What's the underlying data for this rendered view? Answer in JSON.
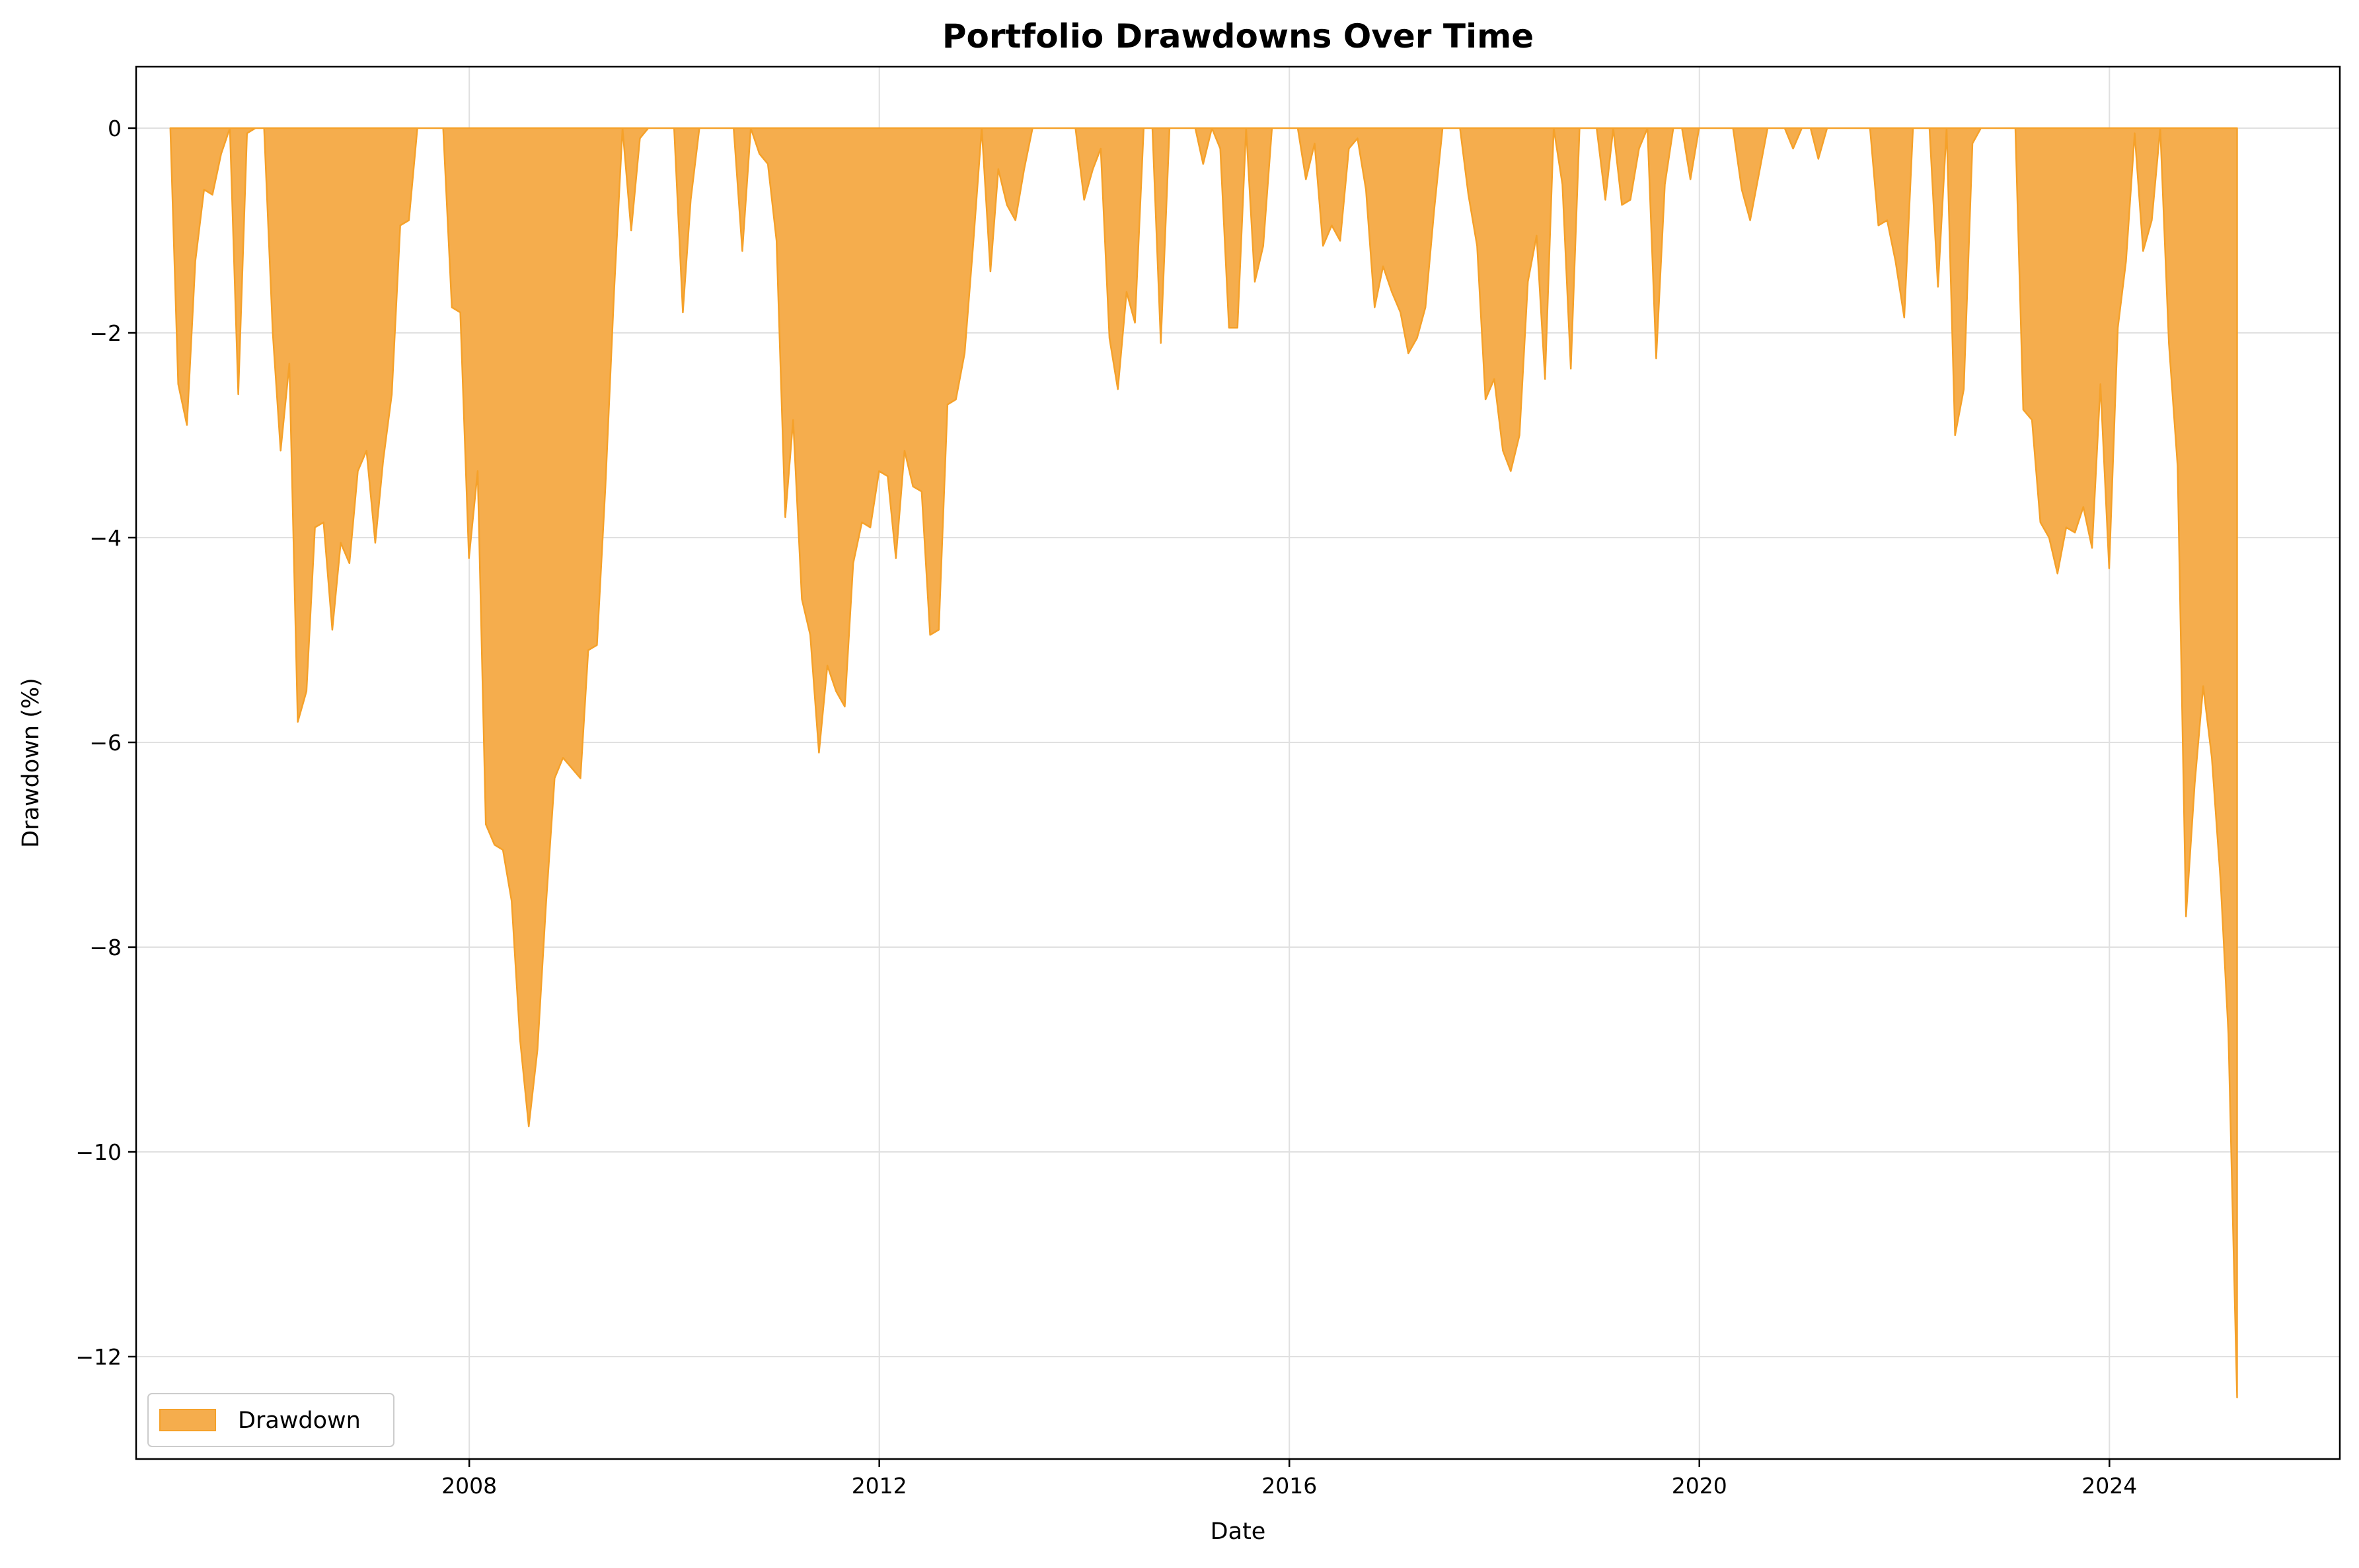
{
  "chart_data": {
    "type": "area",
    "title": "Portfolio Drawdowns Over Time",
    "xlabel": "Date",
    "ylabel": "Drawdown (%)",
    "xlim": [
      "2004-10-01",
      "2026-04-01"
    ],
    "ylim": [
      -13.0,
      0.6
    ],
    "x_ticks": [
      "2008",
      "2012",
      "2016",
      "2020",
      "2024"
    ],
    "y_ticks": [
      0,
      -2,
      -4,
      -6,
      -8,
      -10,
      -12
    ],
    "y_tick_labels": [
      "0",
      "−2",
      "−4",
      "−6",
      "−8",
      "−10",
      "−12"
    ],
    "grid": true,
    "legend": {
      "position": "lower-left",
      "entries": [
        "Drawdown"
      ]
    },
    "colors": {
      "fill": "#f5ad4d",
      "edge": "#f5a12a",
      "grid": "#e0e0e0"
    },
    "series": [
      {
        "name": "Drawdown",
        "points": [
          [
            "2005-01-31",
            0
          ],
          [
            "2005-02-28",
            -2.5
          ],
          [
            "2005-03-31",
            -2.9
          ],
          [
            "2005-04-30",
            -1.3
          ],
          [
            "2005-05-31",
            -0.6
          ],
          [
            "2005-06-30",
            -0.65
          ],
          [
            "2005-07-31",
            -0.25
          ],
          [
            "2005-08-31",
            0
          ],
          [
            "2005-09-30",
            -2.6
          ],
          [
            "2005-10-31",
            -0.05
          ],
          [
            "2005-11-30",
            0
          ],
          [
            "2005-12-31",
            0
          ],
          [
            "2006-01-31",
            -2.0
          ],
          [
            "2006-02-28",
            -3.15
          ],
          [
            "2006-03-31",
            -2.3
          ],
          [
            "2006-04-30",
            -5.8
          ],
          [
            "2006-05-31",
            -5.5
          ],
          [
            "2006-06-30",
            -3.9
          ],
          [
            "2006-07-31",
            -3.85
          ],
          [
            "2006-08-31",
            -4.9
          ],
          [
            "2006-09-30",
            -4.05
          ],
          [
            "2006-10-31",
            -4.25
          ],
          [
            "2006-11-30",
            -3.35
          ],
          [
            "2006-12-31",
            -3.15
          ],
          [
            "2007-01-31",
            -4.05
          ],
          [
            "2007-02-28",
            -3.25
          ],
          [
            "2007-03-31",
            -2.6
          ],
          [
            "2007-04-30",
            -0.95
          ],
          [
            "2007-05-31",
            -0.9
          ],
          [
            "2007-06-30",
            0
          ],
          [
            "2007-07-31",
            0
          ],
          [
            "2007-08-31",
            0
          ],
          [
            "2007-09-30",
            0
          ],
          [
            "2007-10-31",
            -1.75
          ],
          [
            "2007-11-30",
            -1.8
          ],
          [
            "2007-12-31",
            -4.2
          ],
          [
            "2008-01-31",
            -3.35
          ],
          [
            "2008-02-29",
            -6.8
          ],
          [
            "2008-03-31",
            -7.0
          ],
          [
            "2008-04-30",
            -7.05
          ],
          [
            "2008-05-31",
            -7.55
          ],
          [
            "2008-06-30",
            -8.9
          ],
          [
            "2008-07-31",
            -9.75
          ],
          [
            "2008-08-31",
            -9.0
          ],
          [
            "2008-09-30",
            -7.6
          ],
          [
            "2008-10-31",
            -6.35
          ],
          [
            "2008-11-30",
            -6.15
          ],
          [
            "2008-12-31",
            -6.25
          ],
          [
            "2009-01-31",
            -6.35
          ],
          [
            "2009-02-28",
            -5.1
          ],
          [
            "2009-03-31",
            -5.05
          ],
          [
            "2009-04-30",
            -3.5
          ],
          [
            "2009-05-31",
            -1.6
          ],
          [
            "2009-06-30",
            0
          ],
          [
            "2009-07-31",
            -1.0
          ],
          [
            "2009-08-31",
            -0.1
          ],
          [
            "2009-09-30",
            0
          ],
          [
            "2009-10-31",
            0
          ],
          [
            "2009-11-30",
            0
          ],
          [
            "2009-12-31",
            0
          ],
          [
            "2010-01-31",
            -1.8
          ],
          [
            "2010-02-28",
            -0.7
          ],
          [
            "2010-03-31",
            0
          ],
          [
            "2010-04-30",
            0
          ],
          [
            "2010-05-31",
            0
          ],
          [
            "2010-06-30",
            0
          ],
          [
            "2010-07-31",
            0
          ],
          [
            "2010-08-31",
            -1.2
          ],
          [
            "2010-09-30",
            0
          ],
          [
            "2010-10-31",
            -0.25
          ],
          [
            "2010-11-30",
            -0.35
          ],
          [
            "2010-12-31",
            -1.1
          ],
          [
            "2011-01-31",
            -3.8
          ],
          [
            "2011-02-28",
            -2.85
          ],
          [
            "2011-03-31",
            -4.6
          ],
          [
            "2011-04-30",
            -4.95
          ],
          [
            "2011-05-31",
            -6.1
          ],
          [
            "2011-06-30",
            -5.25
          ],
          [
            "2011-07-31",
            -5.5
          ],
          [
            "2011-08-31",
            -5.65
          ],
          [
            "2011-09-30",
            -4.25
          ],
          [
            "2011-10-31",
            -3.85
          ],
          [
            "2011-11-30",
            -3.9
          ],
          [
            "2011-12-31",
            -3.35
          ],
          [
            "2012-01-31",
            -3.4
          ],
          [
            "2012-02-29",
            -4.2
          ],
          [
            "2012-03-31",
            -3.15
          ],
          [
            "2012-04-30",
            -3.5
          ],
          [
            "2012-05-31",
            -3.55
          ],
          [
            "2012-06-30",
            -4.95
          ],
          [
            "2012-07-31",
            -4.9
          ],
          [
            "2012-08-31",
            -2.7
          ],
          [
            "2012-09-30",
            -2.65
          ],
          [
            "2012-10-31",
            -2.2
          ],
          [
            "2012-11-30",
            -1.15
          ],
          [
            "2012-12-31",
            0
          ],
          [
            "2013-01-31",
            -1.4
          ],
          [
            "2013-02-28",
            -0.4
          ],
          [
            "2013-03-31",
            -0.75
          ],
          [
            "2013-04-30",
            -0.9
          ],
          [
            "2013-05-31",
            -0.4
          ],
          [
            "2013-06-30",
            0
          ],
          [
            "2013-07-31",
            0
          ],
          [
            "2013-08-31",
            0
          ],
          [
            "2013-09-30",
            0
          ],
          [
            "2013-10-31",
            0
          ],
          [
            "2013-11-30",
            0
          ],
          [
            "2013-12-31",
            -0.7
          ],
          [
            "2014-01-31",
            -0.4
          ],
          [
            "2014-02-28",
            -0.2
          ],
          [
            "2014-03-31",
            -2.05
          ],
          [
            "2014-04-30",
            -2.55
          ],
          [
            "2014-05-31",
            -1.6
          ],
          [
            "2014-06-30",
            -1.9
          ],
          [
            "2014-07-31",
            0
          ],
          [
            "2014-08-31",
            0
          ],
          [
            "2014-09-30",
            -2.1
          ],
          [
            "2014-10-31",
            0
          ],
          [
            "2014-11-30",
            0
          ],
          [
            "2014-12-31",
            0
          ],
          [
            "2015-01-31",
            0
          ],
          [
            "2015-02-28",
            -0.35
          ],
          [
            "2015-03-31",
            0
          ],
          [
            "2015-04-30",
            -0.2
          ],
          [
            "2015-05-31",
            -1.95
          ],
          [
            "2015-06-30",
            -1.95
          ],
          [
            "2015-07-31",
            0
          ],
          [
            "2015-08-31",
            -1.5
          ],
          [
            "2015-09-30",
            -1.15
          ],
          [
            "2015-10-31",
            0
          ],
          [
            "2015-11-30",
            0
          ],
          [
            "2015-12-31",
            0
          ],
          [
            "2016-01-31",
            0
          ],
          [
            "2016-02-29",
            -0.5
          ],
          [
            "2016-03-31",
            -0.15
          ],
          [
            "2016-04-30",
            -1.15
          ],
          [
            "2016-05-31",
            -0.95
          ],
          [
            "2016-06-30",
            -1.1
          ],
          [
            "2016-07-31",
            -0.2
          ],
          [
            "2016-08-31",
            -0.1
          ],
          [
            "2016-09-30",
            -0.6
          ],
          [
            "2016-10-31",
            -1.75
          ],
          [
            "2016-11-30",
            -1.35
          ],
          [
            "2016-12-31",
            -1.6
          ],
          [
            "2017-01-31",
            -1.8
          ],
          [
            "2017-02-28",
            -2.2
          ],
          [
            "2017-03-31",
            -2.05
          ],
          [
            "2017-04-30",
            -1.75
          ],
          [
            "2017-05-31",
            -0.8
          ],
          [
            "2017-06-30",
            0
          ],
          [
            "2017-07-31",
            0
          ],
          [
            "2017-08-31",
            0
          ],
          [
            "2017-09-30",
            -0.65
          ],
          [
            "2017-10-31",
            -1.15
          ],
          [
            "2017-11-30",
            -2.65
          ],
          [
            "2017-12-31",
            -2.45
          ],
          [
            "2018-01-31",
            -3.15
          ],
          [
            "2018-02-28",
            -3.35
          ],
          [
            "2018-03-31",
            -3.0
          ],
          [
            "2018-04-30",
            -1.5
          ],
          [
            "2018-05-31",
            -1.05
          ],
          [
            "2018-06-30",
            -2.45
          ],
          [
            "2018-07-31",
            0
          ],
          [
            "2018-08-31",
            -0.55
          ],
          [
            "2018-09-30",
            -2.35
          ],
          [
            "2018-10-31",
            0
          ],
          [
            "2018-11-30",
            0
          ],
          [
            "2018-12-31",
            0
          ],
          [
            "2019-01-31",
            -0.7
          ],
          [
            "2019-02-28",
            0
          ],
          [
            "2019-03-31",
            -0.75
          ],
          [
            "2019-04-30",
            -0.7
          ],
          [
            "2019-05-31",
            -0.2
          ],
          [
            "2019-06-30",
            0
          ],
          [
            "2019-07-31",
            -2.25
          ],
          [
            "2019-08-31",
            -0.55
          ],
          [
            "2019-09-30",
            0
          ],
          [
            "2019-10-31",
            0
          ],
          [
            "2019-11-30",
            -0.5
          ],
          [
            "2019-12-31",
            0
          ],
          [
            "2020-01-31",
            0
          ],
          [
            "2020-02-29",
            0
          ],
          [
            "2020-03-31",
            0
          ],
          [
            "2020-04-30",
            0
          ],
          [
            "2020-05-31",
            -0.6
          ],
          [
            "2020-06-30",
            -0.9
          ],
          [
            "2020-07-31",
            -0.45
          ],
          [
            "2020-08-31",
            0
          ],
          [
            "2020-09-30",
            0
          ],
          [
            "2020-10-31",
            0
          ],
          [
            "2020-11-30",
            -0.2
          ],
          [
            "2020-12-31",
            0
          ],
          [
            "2021-01-31",
            0
          ],
          [
            "2021-02-28",
            -0.3
          ],
          [
            "2021-03-31",
            0
          ],
          [
            "2021-04-30",
            0
          ],
          [
            "2021-05-31",
            0
          ],
          [
            "2021-06-30",
            0
          ],
          [
            "2021-07-31",
            0
          ],
          [
            "2021-08-31",
            0
          ],
          [
            "2021-09-30",
            -0.95
          ],
          [
            "2021-10-31",
            -0.9
          ],
          [
            "2021-11-30",
            -1.3
          ],
          [
            "2021-12-31",
            -1.85
          ],
          [
            "2022-01-31",
            0
          ],
          [
            "2022-02-28",
            0
          ],
          [
            "2022-03-31",
            0
          ],
          [
            "2022-04-30",
            -1.55
          ],
          [
            "2022-05-31",
            0
          ],
          [
            "2022-06-30",
            -3.0
          ],
          [
            "2022-07-31",
            -2.55
          ],
          [
            "2022-08-31",
            -0.15
          ],
          [
            "2022-09-30",
            0
          ],
          [
            "2022-10-31",
            0
          ],
          [
            "2022-11-30",
            0
          ],
          [
            "2022-12-31",
            0
          ],
          [
            "2023-01-31",
            0
          ],
          [
            "2023-02-28",
            -2.75
          ],
          [
            "2023-03-31",
            -2.85
          ],
          [
            "2023-04-30",
            -3.85
          ],
          [
            "2023-05-31",
            -4.0
          ],
          [
            "2023-06-30",
            -4.35
          ],
          [
            "2023-07-31",
            -3.9
          ],
          [
            "2023-08-31",
            -3.95
          ],
          [
            "2023-09-30",
            -3.7
          ],
          [
            "2023-10-31",
            -4.1
          ],
          [
            "2023-11-30",
            -2.5
          ],
          [
            "2023-12-31",
            -4.3
          ],
          [
            "2024-01-31",
            -1.95
          ],
          [
            "2024-02-29",
            -1.3
          ],
          [
            "2024-03-31",
            -0.05
          ],
          [
            "2024-04-30",
            -1.2
          ],
          [
            "2024-05-31",
            -0.9
          ],
          [
            "2024-06-30",
            0
          ],
          [
            "2024-07-31",
            -2.1
          ],
          [
            "2024-08-31",
            -3.3
          ],
          [
            "2024-09-30",
            -7.7
          ],
          [
            "2024-10-31",
            -6.4
          ],
          [
            "2024-11-30",
            -5.45
          ],
          [
            "2024-12-31",
            -6.15
          ],
          [
            "2025-01-31",
            -7.35
          ],
          [
            "2025-02-28",
            -8.85
          ],
          [
            "2025-03-31",
            -12.4
          ],
          [
            "2025-03-31",
            0
          ]
        ]
      }
    ]
  }
}
